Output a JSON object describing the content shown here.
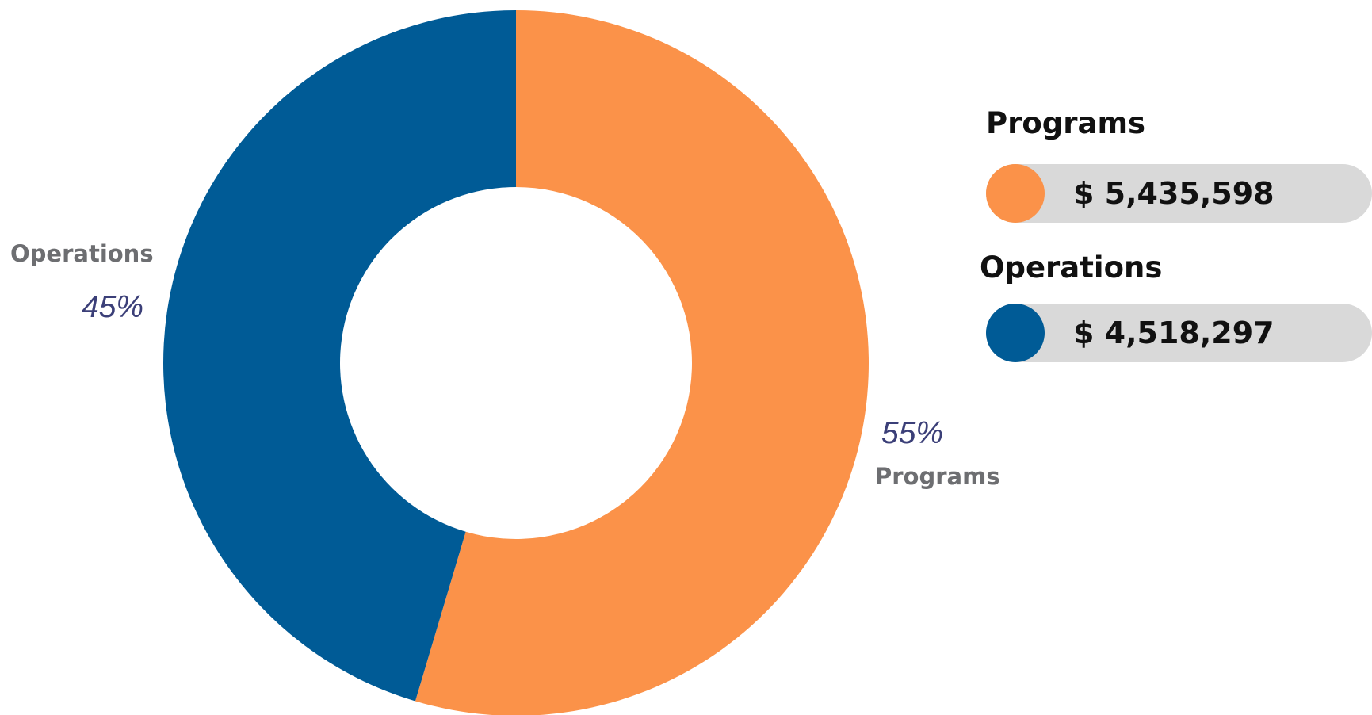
{
  "chart_data": {
    "type": "pie",
    "variant": "donut",
    "categories": [
      "Programs",
      "Operations"
    ],
    "values": [
      5435598,
      4518297
    ],
    "percent_labels": [
      "55%",
      "45%"
    ],
    "value_labels": [
      "$ 5,435,598",
      "$ 4,518,297"
    ],
    "colors": [
      "#fb9249",
      "#005b96"
    ],
    "legend_position": "right"
  },
  "slice_labels": {
    "programs": {
      "name": "Programs",
      "percent": "55%"
    },
    "operations": {
      "name": "Operations",
      "percent": "45%"
    }
  },
  "legend": {
    "programs": {
      "title": "Programs",
      "value": "$ 5,435,598",
      "color": "#fb9249"
    },
    "operations": {
      "title": "Operations",
      "value": "$ 4,518,297",
      "color": "#005b96"
    }
  }
}
